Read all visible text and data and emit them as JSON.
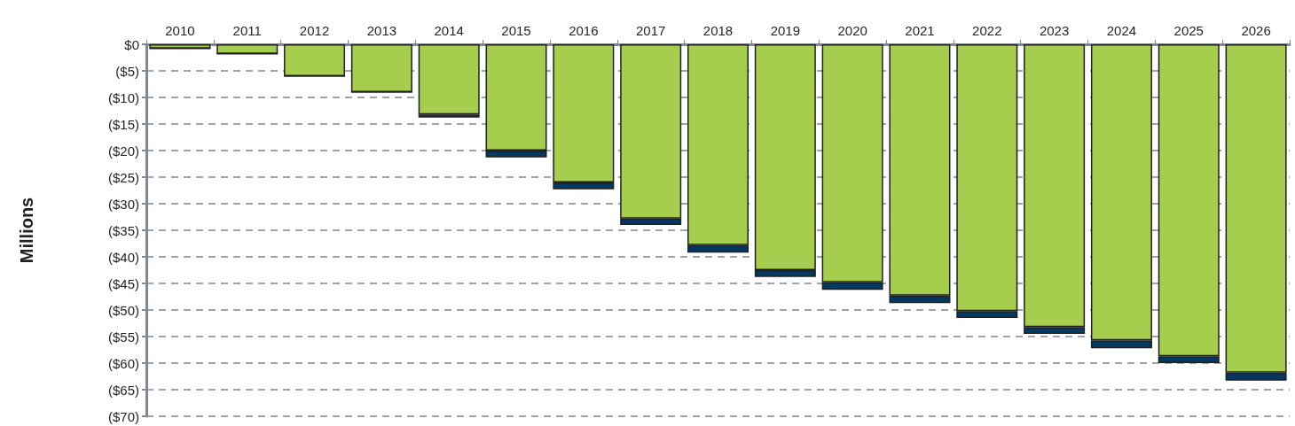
{
  "chart_data": {
    "type": "bar",
    "ylabel": "Millions",
    "categories": [
      "2010",
      "2011",
      "2012",
      "2013",
      "2014",
      "2015",
      "2016",
      "2017",
      "2018",
      "2019",
      "2020",
      "2021",
      "2022",
      "2023",
      "2024",
      "2025",
      "2026"
    ],
    "stacked": true,
    "series": [
      {
        "color": "#a6ce4e",
        "values": [
          -0.8,
          -1.8,
          -6,
          -9,
          -13.2,
          -20,
          -26,
          -32.8,
          -37.8,
          -42.5,
          -44.8,
          -47.3,
          -50.2,
          -53.2,
          -55.7,
          -58.7,
          -61.8
        ]
      },
      {
        "color": "#003a63",
        "values": [
          0,
          0,
          0,
          0,
          -0.6,
          -1.3,
          -1.3,
          -1.2,
          -1.4,
          -1.3,
          -1.4,
          -1.4,
          -1.3,
          -1.3,
          -1.5,
          -1.3,
          -1.5
        ]
      }
    ],
    "ylim": [
      -70,
      0
    ],
    "yticks": [
      {
        "value": 0,
        "label": "$0"
      },
      {
        "value": -5,
        "label": "($5)"
      },
      {
        "value": -10,
        "label": "($10)"
      },
      {
        "value": -15,
        "label": "($15)"
      },
      {
        "value": -20,
        "label": "($20)"
      },
      {
        "value": -25,
        "label": "($25)"
      },
      {
        "value": -30,
        "label": "($30)"
      },
      {
        "value": -35,
        "label": "($35)"
      },
      {
        "value": -40,
        "label": "($40)"
      },
      {
        "value": -45,
        "label": "($45)"
      },
      {
        "value": -50,
        "label": "($50)"
      },
      {
        "value": -55,
        "label": "($55)"
      },
      {
        "value": -60,
        "label": "($60)"
      },
      {
        "value": -65,
        "label": "($65)"
      },
      {
        "value": -70,
        "label": "($70)"
      }
    ],
    "grid": "y"
  }
}
